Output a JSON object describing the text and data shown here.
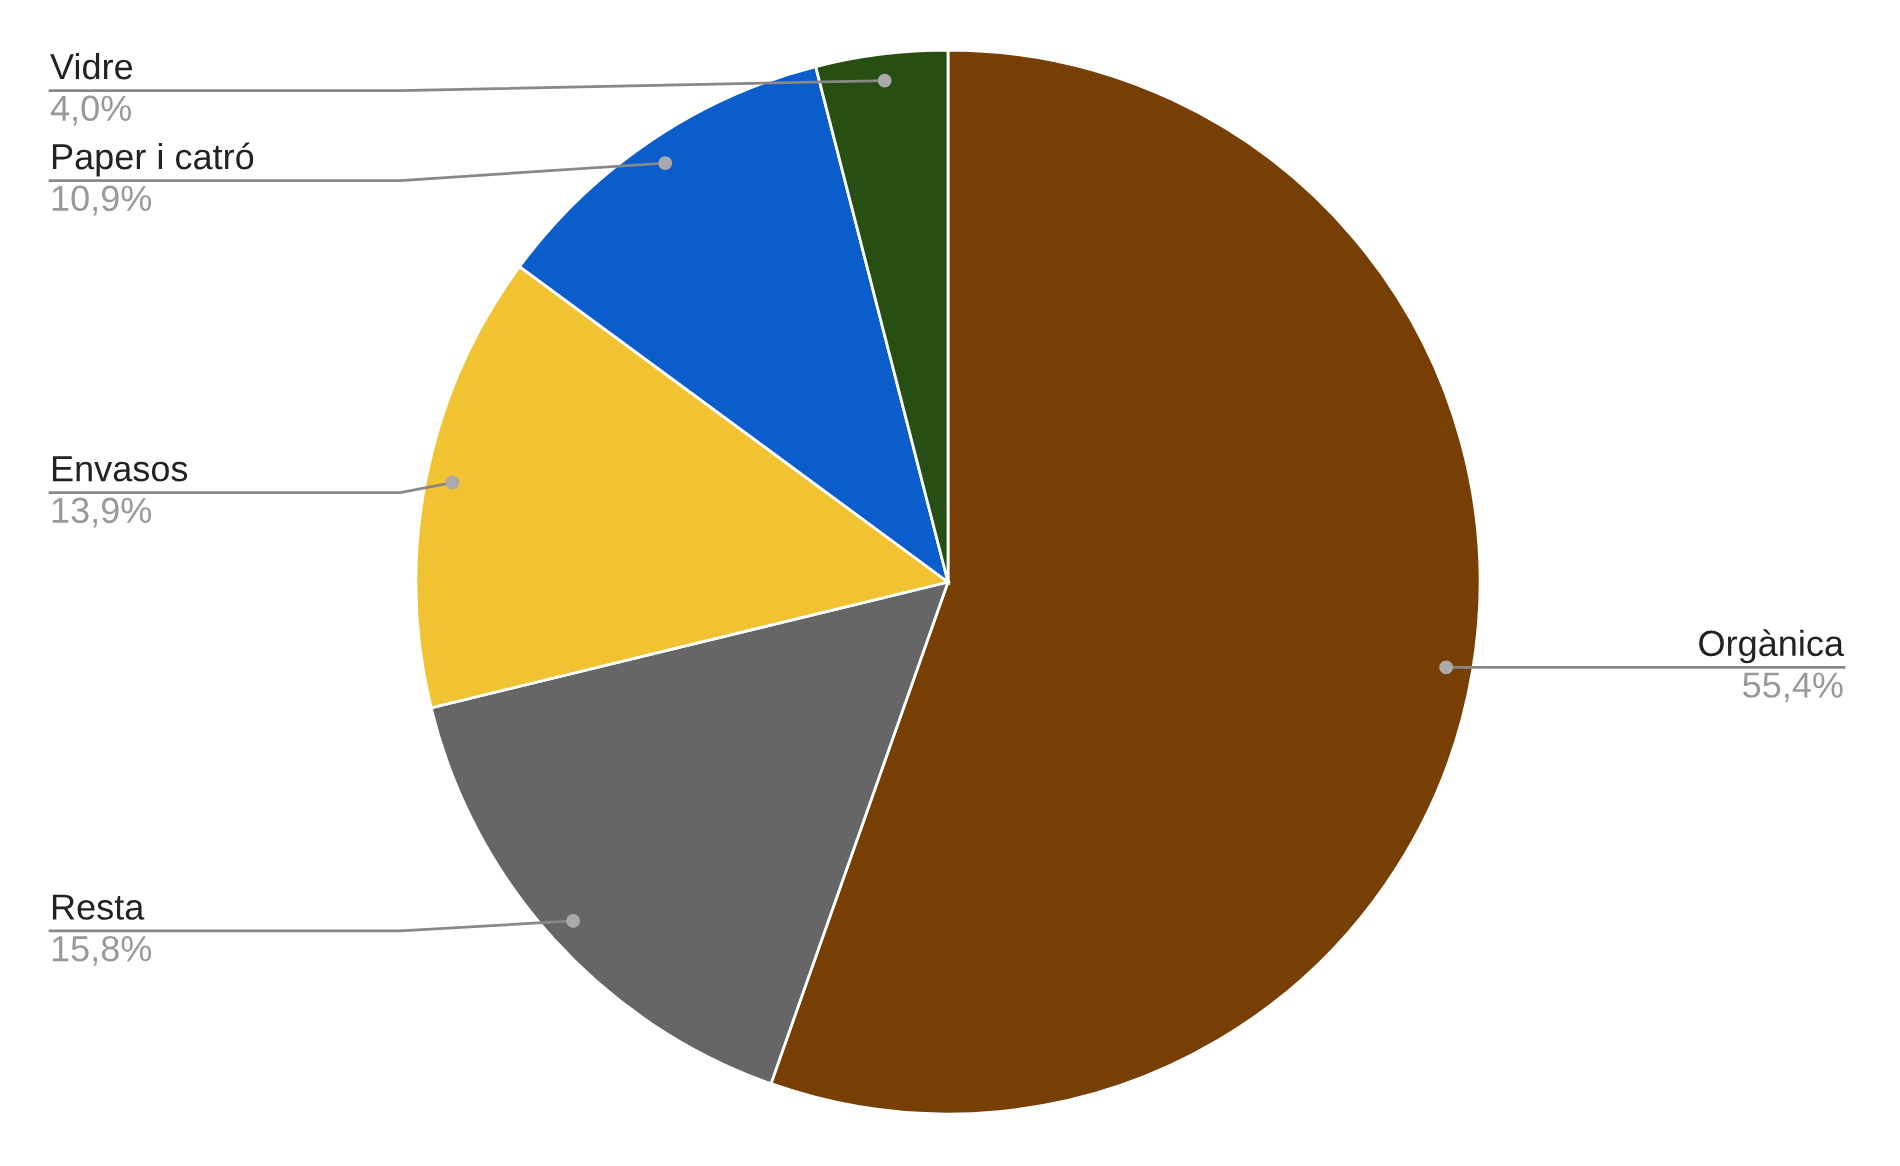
{
  "chart_data": {
    "type": "pie",
    "categories": [
      "Orgànica",
      "Resta",
      "Envasos",
      "Paper i catró",
      "Vidre"
    ],
    "values": [
      55.4,
      15.8,
      13.9,
      10.9,
      4.0
    ],
    "value_labels": [
      "55,4%",
      "15,8%",
      "13,9%",
      "10,9%",
      "4,0%"
    ],
    "colors": [
      "#783f04",
      "#666666",
      "#f1c232",
      "#0b5dcc",
      "#274e13"
    ]
  }
}
